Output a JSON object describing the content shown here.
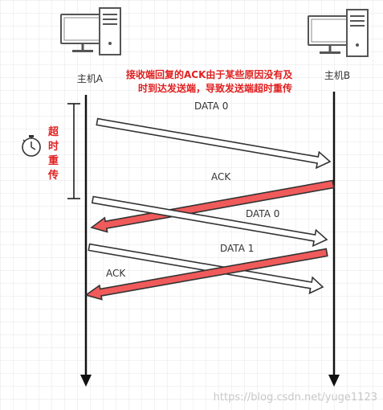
{
  "hosts": {
    "a_label": "主机A",
    "b_label": "主机B"
  },
  "note": {
    "line1": "接收端回复的ACK由于某些原因没有及",
    "line2": "时到达发送端，导致发送端超时重传"
  },
  "timeout": {
    "chars": [
      "超",
      "时",
      "重",
      "传"
    ]
  },
  "messages": [
    {
      "label": "DATA 0",
      "direction": "A→B",
      "style": "outline"
    },
    {
      "label": "ACK",
      "direction": "B→A",
      "style": "red"
    },
    {
      "label": "DATA 0",
      "direction": "A→B",
      "style": "outline"
    },
    {
      "label": "DATA 1",
      "direction": "A→B",
      "style": "outline"
    },
    {
      "label": "ACK",
      "direction": "B→A",
      "style": "red"
    }
  ],
  "watermark": "https://blog.csdn.net/yuge1123",
  "colors": {
    "grid": "#e6e6e6",
    "red": "#f05a5a",
    "red_text": "#e02020",
    "dark": "#111111"
  },
  "icons": [
    "computer-icon",
    "stopwatch-icon"
  ]
}
